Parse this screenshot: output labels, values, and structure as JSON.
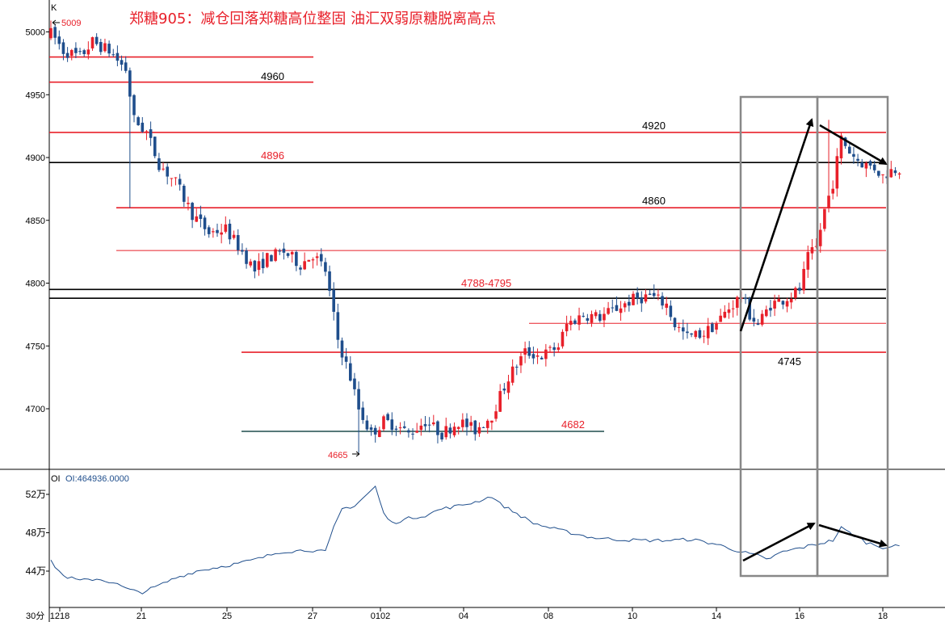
{
  "title": "郑糖905：减仓回落郑糖高位整固 油汇双弱原糖脱离高点",
  "colors": {
    "up": "#e8202a",
    "down": "#1f4e8c",
    "level_red": "#e8202a",
    "level_black": "#000000",
    "level_teal": "#1f4d4d",
    "box": "#888888",
    "oi_line": "#1f4e8c",
    "text_red": "#e8202a",
    "axis": "#000000"
  },
  "price_panel": {
    "label": "K",
    "y_ticks": [
      "5000",
      "4950",
      "4900",
      "4850",
      "4800",
      "4750",
      "4700"
    ],
    "tick_values": [
      5000,
      4950,
      4900,
      4850,
      4800,
      4750,
      4700
    ],
    "ylim": [
      4660,
      5020
    ]
  },
  "oi_panel": {
    "header_prefix": "OI",
    "header_value": "OI:464936.0000",
    "y_ticks": [
      "52万",
      "48万",
      "44万"
    ],
    "tick_values": [
      52,
      48,
      44
    ],
    "ylim": [
      41.5,
      54.5
    ],
    "unit_label": "30分"
  },
  "x_ticks": [
    "1218",
    "21",
    "25",
    "27",
    "0102",
    "04",
    "08",
    "10",
    "14",
    "16",
    "18"
  ],
  "annotations": {
    "high": "5009",
    "low": "4665",
    "l4960": "4960",
    "l4920": "4920",
    "l4896": "4896",
    "l4860": "4860",
    "l4788": "4788-4795",
    "l4745": "4745",
    "l4682": "4682"
  },
  "chart_data": {
    "type": "candlestick",
    "series": [
      {
        "name": "K",
        "close_path": [
          [
            0,
            5000
          ],
          [
            3,
            4985
          ],
          [
            7,
            4980
          ],
          [
            10,
            4992
          ],
          [
            14,
            4985
          ],
          [
            18,
            4970
          ],
          [
            20,
            4930
          ],
          [
            23,
            4920
          ],
          [
            26,
            4895
          ],
          [
            30,
            4880
          ],
          [
            34,
            4855
          ],
          [
            38,
            4840
          ],
          [
            42,
            4843
          ],
          [
            46,
            4825
          ],
          [
            49,
            4810
          ],
          [
            52,
            4820
          ],
          [
            56,
            4825
          ],
          [
            60,
            4815
          ],
          [
            63,
            4823
          ],
          [
            66,
            4810
          ],
          [
            69,
            4755
          ],
          [
            72,
            4725
          ],
          [
            74,
            4700
          ],
          [
            77,
            4680
          ],
          [
            80,
            4690
          ],
          [
            83,
            4687
          ],
          [
            86,
            4680
          ],
          [
            90,
            4690
          ],
          [
            94,
            4680
          ],
          [
            98,
            4690
          ],
          [
            102,
            4683
          ],
          [
            106,
            4695
          ],
          [
            110,
            4725
          ],
          [
            114,
            4745
          ],
          [
            118,
            4742
          ],
          [
            122,
            4750
          ],
          [
            124,
            4767
          ],
          [
            128,
            4775
          ],
          [
            132,
            4773
          ],
          [
            136,
            4780
          ],
          [
            140,
            4787
          ],
          [
            144,
            4790
          ],
          [
            148,
            4783
          ],
          [
            150,
            4767
          ],
          [
            153,
            4757
          ],
          [
            157,
            4760
          ],
          [
            160,
            4768
          ],
          [
            163,
            4780
          ],
          [
            166,
            4790
          ],
          [
            168,
            4775
          ],
          [
            170,
            4767
          ],
          [
            173,
            4783
          ],
          [
            176,
            4787
          ],
          [
            178,
            4790
          ],
          [
            180,
            4795
          ],
          [
            182,
            4820
          ],
          [
            184,
            4828
          ],
          [
            186,
            4858
          ],
          [
            188,
            4880
          ],
          [
            190,
            4915
          ],
          [
            192,
            4905
          ],
          [
            194,
            4898
          ],
          [
            196,
            4894
          ],
          [
            198,
            4892
          ],
          [
            200,
            4885
          ],
          [
            202,
            4890
          ],
          [
            204,
            4892
          ]
        ],
        "high": 5009,
        "low": 4665
      },
      {
        "name": "OI",
        "unit": "万",
        "path": [
          [
            0,
            45.0
          ],
          [
            3,
            43.5
          ],
          [
            7,
            43.0
          ],
          [
            11,
            43.2
          ],
          [
            15,
            42.8
          ],
          [
            19,
            42.0
          ],
          [
            22,
            41.8
          ],
          [
            26,
            42.5
          ],
          [
            30,
            43.3
          ],
          [
            35,
            44.0
          ],
          [
            40,
            44.4
          ],
          [
            45,
            44.8
          ],
          [
            50,
            45.3
          ],
          [
            55,
            46.0
          ],
          [
            62,
            46.2
          ],
          [
            66,
            46.0
          ],
          [
            68,
            48.5
          ],
          [
            70,
            50.5
          ],
          [
            73,
            50.8
          ],
          [
            76,
            52.0
          ],
          [
            78,
            52.8
          ],
          [
            80,
            50.0
          ],
          [
            82,
            49.0
          ],
          [
            86,
            49.5
          ],
          [
            90,
            49.8
          ],
          [
            94,
            50.5
          ],
          [
            98,
            50.8
          ],
          [
            102,
            51.2
          ],
          [
            106,
            51.8
          ],
          [
            108,
            51.0
          ],
          [
            112,
            50.0
          ],
          [
            116,
            49.0
          ],
          [
            120,
            48.5
          ],
          [
            125,
            48.0
          ],
          [
            130,
            47.5
          ],
          [
            136,
            47.3
          ],
          [
            142,
            47.2
          ],
          [
            148,
            47.2
          ],
          [
            154,
            47.3
          ],
          [
            160,
            46.8
          ],
          [
            166,
            46.0
          ],
          [
            170,
            45.6
          ],
          [
            172,
            45.2
          ],
          [
            176,
            46.0
          ],
          [
            180,
            46.4
          ],
          [
            184,
            46.8
          ],
          [
            188,
            47.2
          ],
          [
            190,
            48.5
          ],
          [
            192,
            48.0
          ],
          [
            196,
            47.0
          ],
          [
            200,
            46.5
          ],
          [
            204,
            46.6
          ]
        ]
      }
    ],
    "levels": [
      {
        "label": "",
        "value": 4980
      },
      {
        "label": "4960",
        "value": 4960
      },
      {
        "label": "4920",
        "value": 4920
      },
      {
        "label": "4896",
        "value": 4896
      },
      {
        "label": "4860",
        "value": 4860
      },
      {
        "label": "",
        "value": 4826
      },
      {
        "label": "4788-4795",
        "value": [
          4788,
          4795
        ]
      },
      {
        "label": "",
        "value": 4768
      },
      {
        "label": "4745",
        "value": 4745
      },
      {
        "label": "4682",
        "value": 4682
      }
    ]
  }
}
